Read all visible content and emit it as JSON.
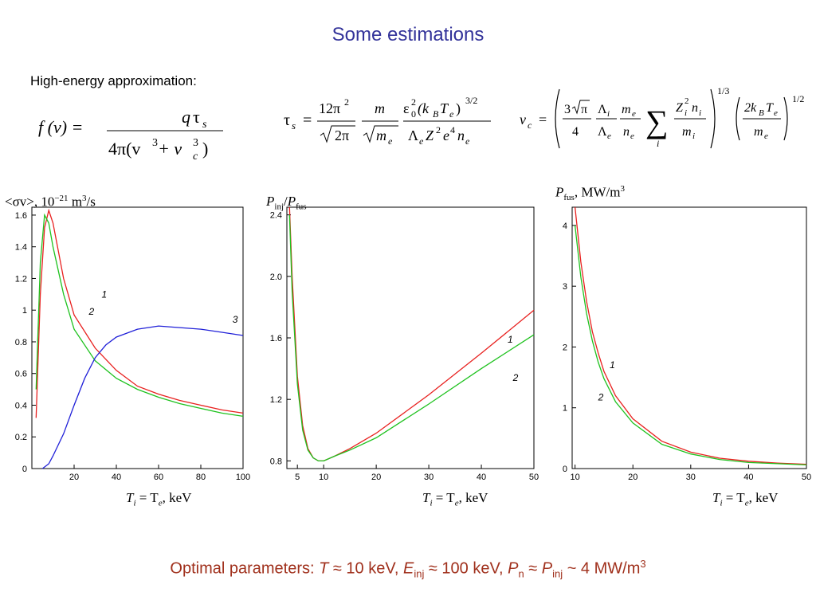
{
  "slide": {
    "title": "Some estimations",
    "subtitle": "High-energy approximation:",
    "optimal": {
      "prefix": "Optimal parameters: ",
      "t_sym": "T",
      "t_val": " ≈ 10 keV, ",
      "e_sym": "E",
      "e_sub": "inj",
      "e_val": " ≈ 100 keV, ",
      "pn_sym": "P",
      "pn_sub": "n",
      "approx": " ≈ ",
      "pinj_sym": "P",
      "pinj_sub": "inj",
      "tail": " ~ 4 MW/m",
      "tail_sup": "3"
    }
  },
  "formulas": {
    "f": {
      "lhs": "f (v) =",
      "num_q": "q",
      "num_tau": "τ",
      "num_s": "s",
      "den_a": "4π(v",
      "den_3a": "3",
      "den_b": " + v",
      "den_3b": "3",
      "den_c": "c",
      "den_close": ")"
    },
    "tau": {
      "lhs_tau": "τ",
      "lhs_s": "s",
      "eq": "=",
      "n1_num": "12π",
      "n1_sup": "2",
      "n1_den": "2π",
      "n2_num": "m",
      "n2_den": "m",
      "n2_den_sub": "e",
      "n3_eps": "ε",
      "n3_eps_sup": "2",
      "n3_eps_sub": "0",
      "n3_mid": "(k",
      "n3_k_sub": "B",
      "n3_T": "T",
      "n3_T_sub": "e",
      "n3_close": ")",
      "n3_pow": "3/2",
      "d3_lam": "Λ",
      "d3_lam_sub": "e",
      "d3_Z": "Z",
      "d3_Z_sup": "2",
      "d3_e": "e",
      "d3_e_sup": "4",
      "d3_n": "n",
      "d3_n_sub": "e"
    },
    "vc": {
      "lhs_v": "v",
      "lhs_c": "c",
      "eq": "=",
      "a_num": "3",
      "a_pi": "π",
      "a_den": "4",
      "b_num": "Λ",
      "b_num_sub": "i",
      "b_den": "Λ",
      "b_den_sub": "e",
      "c_num": "m",
      "c_num_sub": "e",
      "c_den": "n",
      "c_den_sub": "e",
      "sum": "∑",
      "sum_sub": "i",
      "d_num": "Z",
      "d_num_sup": "2",
      "d_num_sub": "i",
      "d_num_n": "n",
      "d_num_n_sub": "i",
      "d_den": "m",
      "d_den_sub": "i",
      "pow1": "1/3",
      "e_num": "2k",
      "e_num_sub": "B",
      "e_num_T": "T",
      "e_num_T_sub": "e",
      "e_den": "m",
      "e_den_sub": "e",
      "pow2": "1/2"
    }
  },
  "colors": {
    "title": "#33339a",
    "optimal": "#a0301c",
    "curve1": "#e8211f",
    "curve2": "#1fc21f",
    "curve3": "#2020d8"
  },
  "chart_data": [
    {
      "type": "line",
      "ylabel_pre": "<σv>, 10",
      "ylabel_exp": "−21",
      "ylabel_unit": " m",
      "ylabel_unit_sup": "3",
      "ylabel_tail": "/s",
      "xlabel_T1": "T",
      "xlabel_i": "i",
      "xlabel_eq": " = T",
      "xlabel_e": "e",
      "xlabel_tail": ", keV",
      "xlim": [
        0,
        100
      ],
      "ylim": [
        0,
        1.65
      ],
      "xticks": [
        "20",
        "40",
        "60",
        "80",
        "100"
      ],
      "yticks": [
        "0",
        "0.2",
        "0.4",
        "0.6",
        "0.8",
        "1",
        "1.2",
        "1.4",
        "1.6"
      ],
      "series": [
        {
          "name": "1",
          "color": "#e8211f",
          "x": [
            2,
            4,
            6,
            8,
            10,
            15,
            20,
            30,
            40,
            50,
            60,
            70,
            80,
            90,
            100
          ],
          "y": [
            0.32,
            1.1,
            1.52,
            1.63,
            1.55,
            1.2,
            0.97,
            0.76,
            0.62,
            0.52,
            0.47,
            0.43,
            0.4,
            0.37,
            0.35
          ]
        },
        {
          "name": "2",
          "color": "#1fc21f",
          "x": [
            2,
            4,
            6,
            8,
            10,
            15,
            20,
            30,
            40,
            50,
            60,
            70,
            80,
            90,
            100
          ],
          "y": [
            0.5,
            1.3,
            1.6,
            1.55,
            1.4,
            1.1,
            0.88,
            0.68,
            0.57,
            0.5,
            0.45,
            0.41,
            0.38,
            0.35,
            0.33
          ]
        },
        {
          "name": "3",
          "color": "#2020d8",
          "x": [
            5,
            8,
            10,
            15,
            20,
            25,
            30,
            35,
            40,
            50,
            60,
            70,
            80,
            90,
            100
          ],
          "y": [
            0.0,
            0.03,
            0.08,
            0.22,
            0.4,
            0.57,
            0.7,
            0.78,
            0.83,
            0.88,
            0.9,
            0.89,
            0.88,
            0.86,
            0.84
          ]
        }
      ]
    },
    {
      "type": "line",
      "ylabel_P1": "P",
      "ylabel_inj": "inj",
      "ylabel_slash": "/",
      "ylabel_P2": "P",
      "ylabel_fus": "fus",
      "xlabel_T1": "T",
      "xlabel_i": "i",
      "xlabel_eq": " = T",
      "xlabel_e": "e",
      "xlabel_tail": ", keV",
      "xlim": [
        3,
        50
      ],
      "ylim": [
        0.75,
        2.45
      ],
      "xticks": [
        "5",
        "10",
        "20",
        "30",
        "40",
        "50"
      ],
      "yticks": [
        "0.8",
        "1.2",
        "1.6",
        "2.0",
        "2.4"
      ],
      "series": [
        {
          "name": "1",
          "color": "#e8211f",
          "x": [
            3.5,
            4,
            5,
            6,
            7,
            8,
            9,
            10,
            12,
            15,
            20,
            30,
            40,
            50
          ],
          "y": [
            2.45,
            2.0,
            1.35,
            1.03,
            0.88,
            0.82,
            0.8,
            0.8,
            0.83,
            0.88,
            0.98,
            1.23,
            1.5,
            1.78
          ]
        },
        {
          "name": "2",
          "color": "#1fc21f",
          "x": [
            3.5,
            4,
            5,
            6,
            7,
            8,
            9,
            10,
            12,
            15,
            20,
            30,
            40,
            50
          ],
          "y": [
            2.4,
            1.9,
            1.3,
            1.0,
            0.87,
            0.82,
            0.8,
            0.8,
            0.83,
            0.87,
            0.95,
            1.17,
            1.4,
            1.62
          ]
        }
      ]
    },
    {
      "type": "line",
      "ylabel_P": "P",
      "ylabel_fus": "fus",
      "ylabel_tail": ", MW/m",
      "ylabel_sup": "3",
      "xlabel_T1": "T",
      "xlabel_i": "i",
      "xlabel_eq": " = T",
      "xlabel_e": "e",
      "xlabel_tail": ", keV",
      "xlim": [
        9.5,
        50
      ],
      "ylim": [
        0,
        4.3
      ],
      "xticks": [
        "10",
        "20",
        "30",
        "40",
        "50"
      ],
      "yticks": [
        "0",
        "1",
        "2",
        "3",
        "4"
      ],
      "series": [
        {
          "name": "1",
          "color": "#e8211f",
          "x": [
            10,
            11,
            12,
            13,
            14,
            15,
            17,
            20,
            25,
            30,
            35,
            40,
            45,
            50
          ],
          "y": [
            4.3,
            3.4,
            2.75,
            2.25,
            1.9,
            1.6,
            1.2,
            0.82,
            0.45,
            0.27,
            0.17,
            0.12,
            0.09,
            0.07
          ]
        },
        {
          "name": "2",
          "color": "#1fc21f",
          "x": [
            10,
            11,
            12,
            13,
            14,
            15,
            17,
            20,
            25,
            30,
            35,
            40,
            45,
            50
          ],
          "y": [
            4.0,
            3.15,
            2.55,
            2.1,
            1.75,
            1.48,
            1.1,
            0.75,
            0.4,
            0.24,
            0.15,
            0.1,
            0.08,
            0.06
          ]
        }
      ]
    }
  ]
}
